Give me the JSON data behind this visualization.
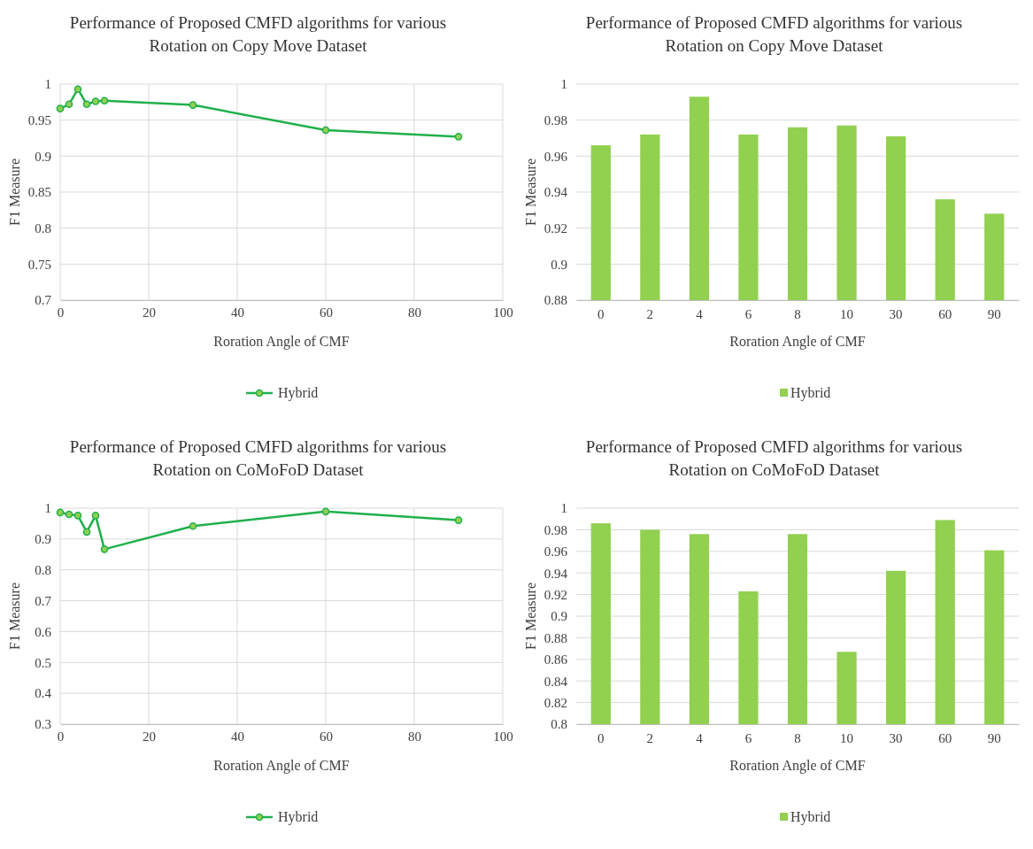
{
  "chart_data": [
    {
      "type": "line",
      "title": "Performance of Proposed CMFD algorithms for various Rotation on Copy Move Dataset",
      "xlabel": "Roration Angle of CMF",
      "ylabel": "F1 Measure",
      "x": [
        0,
        2,
        4,
        6,
        8,
        10,
        30,
        60,
        90
      ],
      "series": [
        {
          "name": "Hybrid",
          "color": "#1fb04c",
          "values": [
            0.966,
            0.972,
            0.993,
            0.972,
            0.976,
            0.977,
            0.971,
            0.936,
            0.927
          ]
        }
      ],
      "xlim": [
        0,
        100
      ],
      "xticks": [
        0,
        20,
        40,
        60,
        80,
        100
      ],
      "ylim": [
        0.7,
        1
      ],
      "yticks": [
        0.7,
        0.75,
        0.8,
        0.85,
        0.9,
        0.95,
        1
      ],
      "grid": true,
      "legend": "bottom",
      "marker": "circle",
      "line_style": "solid"
    },
    {
      "type": "bar",
      "title": "Performance of Proposed CMFD algorithms for various Rotation on Copy Move Dataset",
      "xlabel": "Roration Angle of CMF",
      "ylabel": "F1 Measure",
      "categories": [
        "0",
        "2",
        "4",
        "6",
        "8",
        "10",
        "30",
        "60",
        "90"
      ],
      "series": [
        {
          "name": "Hybrid",
          "color": "#92d050",
          "values": [
            0.966,
            0.972,
            0.993,
            0.972,
            0.976,
            0.977,
            0.971,
            0.936,
            0.928
          ]
        }
      ],
      "ylim": [
        0.88,
        1
      ],
      "yticks": [
        0.88,
        0.9,
        0.92,
        0.94,
        0.96,
        0.98,
        1
      ],
      "grid": "y",
      "legend": "bottom"
    },
    {
      "type": "line",
      "title": "Performance of Proposed CMFD algorithms for various Rotation on CoMoFoD Dataset",
      "xlabel": "Roration Angle of CMF",
      "ylabel": "F1 Measure",
      "x": [
        0,
        2,
        4,
        6,
        8,
        10,
        30,
        60,
        90
      ],
      "series": [
        {
          "name": "Hybrid",
          "color": "#1fb04c",
          "values": [
            0.986,
            0.98,
            0.976,
            0.923,
            0.976,
            0.867,
            0.942,
            0.989,
            0.961
          ]
        }
      ],
      "xlim": [
        0,
        100
      ],
      "xticks": [
        0,
        20,
        40,
        60,
        80,
        100
      ],
      "ylim": [
        0.3,
        1
      ],
      "yticks": [
        0.3,
        0.4,
        0.5,
        0.6,
        0.7,
        0.8,
        0.9,
        1
      ],
      "grid": true,
      "legend": "bottom",
      "marker": "circle",
      "line_style": "solid"
    },
    {
      "type": "bar",
      "title": "Performance of Proposed CMFD algorithms for various Rotation on CoMoFoD Dataset",
      "xlabel": "Roration Angle of CMF",
      "ylabel": "F1 Measure",
      "categories": [
        "0",
        "2",
        "4",
        "6",
        "8",
        "10",
        "30",
        "60",
        "90"
      ],
      "series": [
        {
          "name": "Hybrid",
          "color": "#92d050",
          "values": [
            0.986,
            0.98,
            0.976,
            0.923,
            0.976,
            0.867,
            0.942,
            0.989,
            0.961
          ]
        }
      ],
      "ylim": [
        0.8,
        1
      ],
      "yticks": [
        0.8,
        0.82,
        0.84,
        0.86,
        0.88,
        0.9,
        0.92,
        0.94,
        0.96,
        0.98,
        1
      ],
      "grid": "y",
      "legend": "bottom"
    }
  ]
}
